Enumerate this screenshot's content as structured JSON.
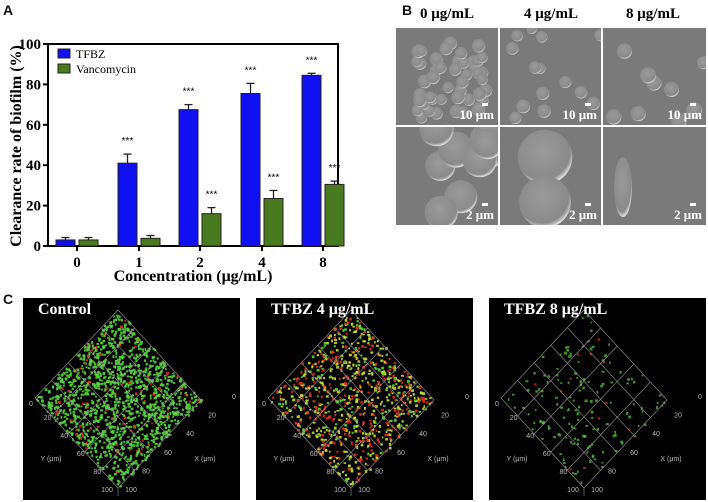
{
  "panels": {
    "a": "A",
    "b": "B",
    "c": "C"
  },
  "chart_data": {
    "type": "bar",
    "title": "",
    "xlabel": "Concentration (μg/mL)",
    "ylabel": "Clearance rate of biofilm (%)",
    "ylim": [
      0,
      100
    ],
    "yticks": [
      "0",
      "20",
      "40",
      "60",
      "80",
      "100"
    ],
    "categories": [
      "0",
      "1",
      "2",
      "4",
      "8"
    ],
    "legend_position": "top-left",
    "grid": false,
    "series": [
      {
        "name": "TFBZ",
        "color": "#1010f0",
        "values": [
          3,
          41,
          67.5,
          75.5,
          84.5
        ],
        "errors": [
          1.2,
          4.5,
          2.5,
          5,
          1
        ],
        "significance": [
          "",
          "***",
          "***",
          "***",
          "***"
        ]
      },
      {
        "name": "Vancomycin",
        "color": "#4a7a1f",
        "values": [
          3,
          3.8,
          16,
          23.5,
          30.5
        ],
        "errors": [
          1.2,
          1.4,
          3,
          4,
          1.6
        ],
        "significance": [
          "",
          "",
          "***",
          "***",
          "***"
        ]
      }
    ]
  },
  "sem": {
    "headers": [
      "0 μg/mL",
      "4 μg/mL",
      "8 μg/mL"
    ],
    "scale_top": "10 μm",
    "scale_bottom": "2 μm"
  },
  "confocal": {
    "panels": [
      {
        "title": "Control",
        "green": "#58d040",
        "red": "#e03020",
        "yellow": "#c8e030"
      },
      {
        "title": "TFBZ  4 μg/mL"
      },
      {
        "title": "TFBZ  8 μg/mL"
      }
    ],
    "ticks": [
      "0",
      "20",
      "40",
      "60",
      "80",
      "100"
    ],
    "x_axis": "X (μm)",
    "y_axis": "Y (μm)"
  }
}
